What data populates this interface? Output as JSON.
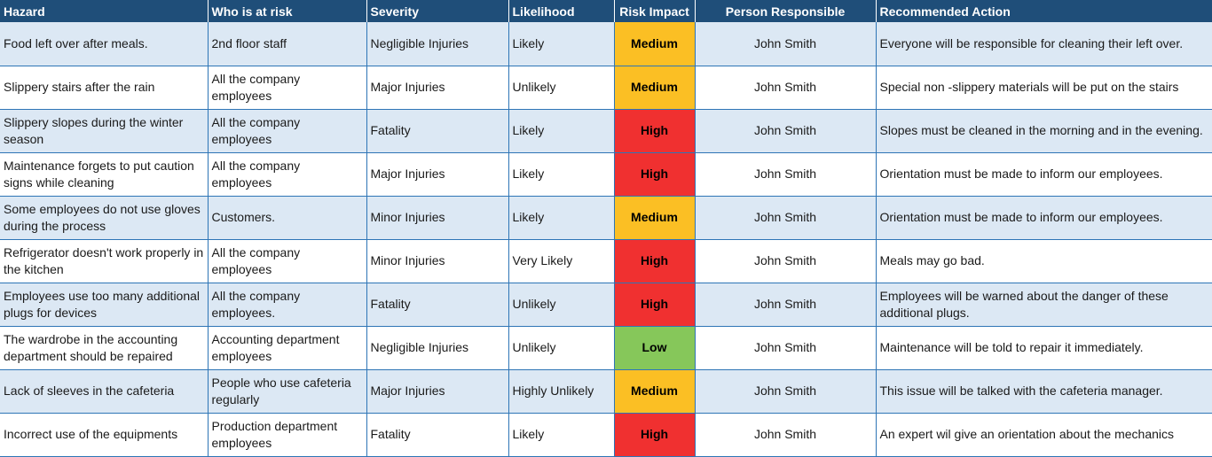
{
  "headers": {
    "hazard": "Hazard",
    "who": "Who is at risk",
    "severity": "Severity",
    "likelihood": "Likelihood",
    "risk": "Risk Impact",
    "person": "Person Responsible",
    "action": "Recommended Action"
  },
  "colors": {
    "medium": "#fbbf24",
    "high": "#f03030",
    "low": "#86c75a",
    "header": "#1f4e79"
  },
  "rows": [
    {
      "hazard": "Food left over after meals.",
      "who": "2nd floor staff",
      "severity": "Negligible Injuries",
      "likelihood": "Likely",
      "risk": "Medium",
      "level": "medium",
      "person": "John Smith",
      "action": "Everyone will be responsible for cleaning their left over."
    },
    {
      "hazard": "Slippery stairs after the rain",
      "who": "All the company employees",
      "severity": "Major Injuries",
      "likelihood": "Unlikely",
      "risk": "Medium",
      "level": "medium",
      "person": "John Smith",
      "action": "Special non -slippery materials will be put on the stairs"
    },
    {
      "hazard": "Slippery slopes during the winter season",
      "who": "All the company employees",
      "severity": "Fatality",
      "likelihood": "Likely",
      "risk": "High",
      "level": "high",
      "person": "John Smith",
      "action": "Slopes must be cleaned in the morning and in the evening."
    },
    {
      "hazard": "Maintenance forgets to put caution signs while cleaning",
      "who": "All the company employees",
      "severity": "Major Injuries",
      "likelihood": "Likely",
      "risk": "High",
      "level": "high",
      "person": "John Smith",
      "action": "Orientation must be made to inform our employees."
    },
    {
      "hazard": "Some employees do not use gloves during the process",
      "who": "Customers.",
      "severity": "Minor Injuries",
      "likelihood": "Likely",
      "risk": "Medium",
      "level": "medium",
      "person": "John Smith",
      "action": "Orientation must be made to inform our employees."
    },
    {
      "hazard": "Refrigerator doesn't work properly in the kitchen",
      "who": "All the company employees",
      "severity": "Minor Injuries",
      "likelihood": "Very Likely",
      "risk": "High",
      "level": "high",
      "person": "John Smith",
      "action": "Meals may go bad."
    },
    {
      "hazard": "Employees use too many additional plugs for  devices",
      "who": "All the company employees.",
      "severity": "Fatality",
      "likelihood": "Unlikely",
      "risk": "High",
      "level": "high",
      "person": "John Smith",
      "action": "Employees will be warned about the danger of these additional plugs."
    },
    {
      "hazard": "The wardrobe in the accounting department should be repaired",
      "who": "Accounting department employees",
      "severity": "Negligible Injuries",
      "likelihood": "Unlikely",
      "risk": "Low",
      "level": "low",
      "person": "John Smith",
      "action": "Maintenance will be told to repair it immediately."
    },
    {
      "hazard": "Lack of sleeves in the cafeteria",
      "who": "People who use cafeteria regularly",
      "severity": "Major Injuries",
      "likelihood": "Highly Unlikely",
      "risk": "Medium",
      "level": "medium",
      "person": "John Smith",
      "action": "This issue will be talked with the cafeteria manager."
    },
    {
      "hazard": "Incorrect use of the equipments",
      "who": "Production department employees",
      "severity": "Fatality",
      "likelihood": "Likely",
      "risk": "High",
      "level": "high",
      "person": "John Smith",
      "action": "An expert wil give an orientation about the mechanics"
    }
  ]
}
